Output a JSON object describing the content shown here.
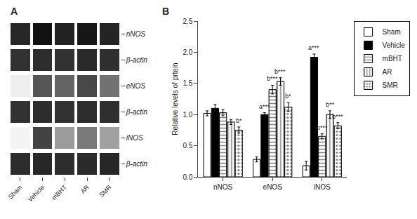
{
  "chart_data": [
    {
      "type": "heatmap",
      "title": "A",
      "x": [
        "Sham",
        "Vehicle",
        "mBHT",
        "AR",
        "SMR"
      ],
      "y": [
        "nNOS",
        "β-actin",
        "eNOS",
        "β-actin",
        "iNOS",
        "β-actin"
      ],
      "z": [
        [
          0.82,
          0.9,
          0.84,
          0.88,
          0.83
        ],
        [
          0.78,
          0.8,
          0.78,
          0.81,
          0.79
        ],
        [
          0.1,
          0.65,
          0.6,
          0.7,
          0.55
        ],
        [
          0.78,
          0.8,
          0.78,
          0.8,
          0.79
        ],
        [
          0.08,
          0.72,
          0.4,
          0.52,
          0.38
        ],
        [
          0.8,
          0.82,
          0.8,
          0.81,
          0.82
        ]
      ]
    },
    {
      "type": "bar",
      "title": "B",
      "ylabel": "Relative levels of prtein",
      "categories": [
        "nNOS",
        "eNOS",
        "iNOS"
      ],
      "series": [
        {
          "name": "Sham",
          "color": "white",
          "marker": "none",
          "values": [
            1.02,
            0.28,
            0.18
          ],
          "errors": [
            0.04,
            0.04,
            0.07
          ],
          "annotations": [
            null,
            null,
            null
          ]
        },
        {
          "name": "Vehicle",
          "color": "black",
          "marker": "none",
          "values": [
            1.1,
            1.0,
            1.92
          ],
          "errors": [
            0.06,
            0.03,
            0.05
          ],
          "annotations": [
            null,
            "a***",
            "a***"
          ]
        },
        {
          "name": "mBHT",
          "color": "white",
          "marker": "horizontal",
          "values": [
            1.03,
            1.4,
            0.65
          ],
          "errors": [
            0.05,
            0.07,
            0.04
          ],
          "annotations": [
            null,
            "b***",
            "b***"
          ]
        },
        {
          "name": "AR",
          "color": "white",
          "marker": "vertical",
          "values": [
            0.88,
            1.53,
            1.0
          ],
          "errors": [
            0.04,
            0.06,
            0.06
          ],
          "annotations": [
            null,
            "b***",
            "b**"
          ]
        },
        {
          "name": "SMR",
          "color": "white",
          "marker": "dots",
          "values": [
            0.75,
            1.12,
            0.82
          ],
          "errors": [
            0.05,
            0.07,
            0.05
          ],
          "annotations": [
            "b*",
            "b*",
            "b***"
          ]
        }
      ],
      "ylim": [
        0,
        2.5
      ],
      "yticks": [
        {
          "value": 0,
          "label": "0.0"
        },
        0.5,
        {
          "value": 1,
          "label": "1.0"
        },
        1.5,
        {
          "value": 2,
          "label": "2.0"
        },
        2.5
      ],
      "legend": "upper right",
      "grid": false
    }
  ]
}
